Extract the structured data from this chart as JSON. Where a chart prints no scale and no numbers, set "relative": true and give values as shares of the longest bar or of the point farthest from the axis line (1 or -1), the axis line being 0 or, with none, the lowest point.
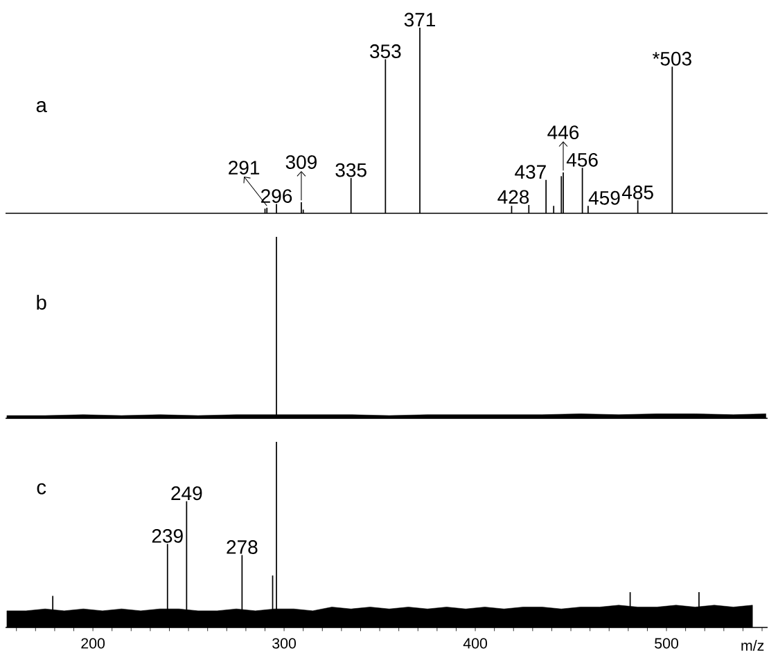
{
  "chart_data": [
    {
      "type": "bar",
      "title": "a",
      "relative": true,
      "xlim": [
        154.3,
        552.9
      ],
      "tick_labels": false,
      "x": [
        290,
        291,
        296,
        309,
        310,
        335,
        353,
        371,
        419,
        428,
        437,
        441,
        445,
        446,
        456,
        459,
        485,
        503
      ],
      "series": [
        {
          "color": "#000000",
          "values": [
            0.025,
            0.03,
            0.05,
            0.06,
            0.02,
            0.19,
            0.83,
            1,
            0.04,
            0.045,
            0.18,
            0.04,
            0.2,
            0.22,
            0.245,
            0.04,
            0.07,
            0.79
          ]
        }
      ],
      "annotations": [
        {
          "text": "291",
          "x": 291,
          "y": 0.03
        },
        {
          "text": "296",
          "x": 296,
          "y": 0.05
        },
        {
          "text": "309",
          "x": 309,
          "y": 0.06
        },
        {
          "text": "335",
          "x": 335,
          "y": 0.19
        },
        {
          "text": "353",
          "x": 353,
          "y": 0.83
        },
        {
          "text": "371",
          "x": 371,
          "y": 1
        },
        {
          "text": "428",
          "x": 428,
          "y": 0.045
        },
        {
          "text": "437",
          "x": 437,
          "y": 0.18
        },
        {
          "text": "446",
          "x": 446,
          "y": 0.22
        },
        {
          "text": "456",
          "x": 456,
          "y": 0.245
        },
        {
          "text": "459",
          "x": 459,
          "y": 0.04
        },
        {
          "text": "485",
          "x": 485,
          "y": 0.07
        },
        {
          "text": "*503",
          "x": 503,
          "y": 0.79
        }
      ]
    },
    {
      "type": "bar",
      "title": "b",
      "relative": true,
      "xlim": [
        154.3,
        552.9
      ],
      "tick_labels": false,
      "x": [
        296
      ],
      "series": [
        {
          "color": "#000000",
          "values": [
            1
          ]
        },
        {
          "type": "area",
          "color": "#000000",
          "x": [
            155,
            175,
            195,
            215,
            235,
            255,
            275,
            295,
            315,
            335,
            355,
            375,
            395,
            415,
            435,
            455,
            475,
            495,
            515,
            535,
            552
          ],
          "values": [
            0.015,
            0.015,
            0.02,
            0.015,
            0.02,
            0.015,
            0.02,
            0.02,
            0.02,
            0.02,
            0.015,
            0.02,
            0.02,
            0.02,
            0.02,
            0.025,
            0.02,
            0.025,
            0.025,
            0.02,
            0.025
          ]
        }
      ]
    },
    {
      "type": "bar",
      "title": "c",
      "relative": true,
      "xlim": [
        154.3,
        552.9
      ],
      "tick_labels": "x",
      "xlabel": "m/z",
      "xticks": [
        {
          "value": 160,
          "label": null
        },
        {
          "value": 170,
          "label": null
        },
        {
          "value": 180,
          "label": null
        },
        {
          "value": 190,
          "label": null
        },
        200,
        {
          "value": 210,
          "label": null
        },
        {
          "value": 220,
          "label": null
        },
        {
          "value": 230,
          "label": null
        },
        {
          "value": 240,
          "label": null
        },
        {
          "value": 250,
          "label": null
        },
        {
          "value": 260,
          "label": null
        },
        {
          "value": 270,
          "label": null
        },
        {
          "value": 280,
          "label": null
        },
        {
          "value": 290,
          "label": null
        },
        300,
        {
          "value": 310,
          "label": null
        },
        {
          "value": 320,
          "label": null
        },
        {
          "value": 330,
          "label": null
        },
        {
          "value": 340,
          "label": null
        },
        {
          "value": 350,
          "label": null
        },
        {
          "value": 360,
          "label": null
        },
        {
          "value": 370,
          "label": null
        },
        {
          "value": 380,
          "label": null
        },
        {
          "value": 390,
          "label": null
        },
        400,
        {
          "value": 410,
          "label": null
        },
        {
          "value": 420,
          "label": null
        },
        {
          "value": 430,
          "label": null
        },
        {
          "value": 440,
          "label": null
        },
        {
          "value": 450,
          "label": null
        },
        {
          "value": 460,
          "label": null
        },
        {
          "value": 470,
          "label": null
        },
        {
          "value": 480,
          "label": null
        },
        {
          "value": 490,
          "label": null
        },
        500,
        {
          "value": 510,
          "label": null
        },
        {
          "value": 520,
          "label": null
        },
        {
          "value": 530,
          "label": null
        },
        {
          "value": 540,
          "label": null
        },
        {
          "value": 550,
          "label": null
        }
      ],
      "x": [
        179,
        239,
        249,
        278,
        294,
        296,
        481,
        517
      ],
      "series": [
        {
          "color": "#000000",
          "values": [
            0.17,
            0.45,
            0.68,
            0.39,
            0.28,
            1,
            0.19,
            0.19
          ]
        },
        {
          "type": "area",
          "color": "#000000",
          "x": [
            155,
            165,
            175,
            185,
            195,
            205,
            215,
            225,
            235,
            245,
            255,
            265,
            275,
            285,
            295,
            305,
            315,
            325,
            335,
            345,
            355,
            365,
            375,
            385,
            395,
            405,
            415,
            425,
            435,
            445,
            455,
            465,
            475,
            485,
            495,
            505,
            515,
            525,
            535,
            545
          ],
          "values": [
            0.09,
            0.09,
            0.1,
            0.09,
            0.1,
            0.09,
            0.1,
            0.09,
            0.1,
            0.1,
            0.09,
            0.09,
            0.1,
            0.09,
            0.1,
            0.1,
            0.09,
            0.11,
            0.1,
            0.11,
            0.1,
            0.11,
            0.1,
            0.11,
            0.1,
            0.11,
            0.1,
            0.11,
            0.11,
            0.1,
            0.11,
            0.11,
            0.12,
            0.11,
            0.11,
            0.12,
            0.11,
            0.12,
            0.11,
            0.12
          ]
        }
      ],
      "annotations": [
        {
          "text": "239",
          "x": 239,
          "y": 0.45
        },
        {
          "text": "249",
          "x": 249,
          "y": 0.68
        },
        {
          "text": "278",
          "x": 278,
          "y": 0.39
        }
      ]
    }
  ]
}
